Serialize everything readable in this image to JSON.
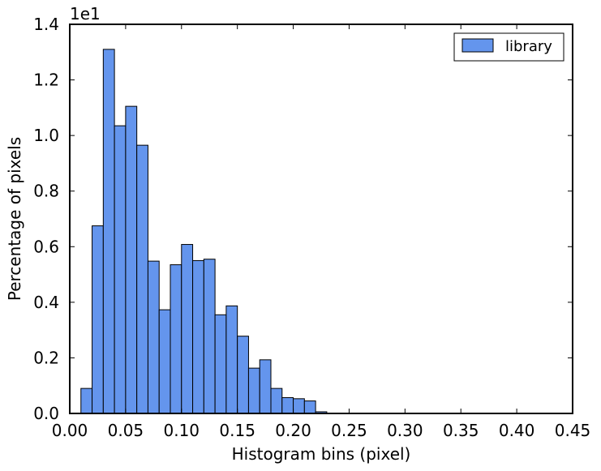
{
  "chart_data": {
    "type": "bar",
    "subtype": "histogram",
    "title": "",
    "xlabel": "Histogram bins (pixel)",
    "ylabel": "Percentage of pixels",
    "y_offset_label": "1e1",
    "xlim": [
      0.0,
      0.45
    ],
    "ylim": [
      0.0,
      1.4
    ],
    "bin_width": 0.01,
    "x_ticks": [
      0.0,
      0.05,
      0.1,
      0.15,
      0.2,
      0.25,
      0.3,
      0.35,
      0.4,
      0.45
    ],
    "x_tick_labels": [
      "0.00",
      "0.05",
      "0.10",
      "0.15",
      "0.20",
      "0.25",
      "0.30",
      "0.35",
      "0.40",
      "0.45"
    ],
    "y_ticks": [
      0.0,
      0.2,
      0.4,
      0.6,
      0.8,
      1.0,
      1.2,
      1.4
    ],
    "y_tick_labels": [
      "0.0",
      "0.2",
      "0.4",
      "0.6",
      "0.8",
      "1.0",
      "1.2",
      "1.4"
    ],
    "grid": false,
    "legend_position": "top-right",
    "series": [
      {
        "name": "library",
        "color": "#6495ED",
        "bin_starts": [
          0.01,
          0.02,
          0.03,
          0.04,
          0.05,
          0.06,
          0.07,
          0.08,
          0.09,
          0.1,
          0.11,
          0.12,
          0.13,
          0.14,
          0.15,
          0.16,
          0.17,
          0.18,
          0.19,
          0.2,
          0.21,
          0.22
        ],
        "values": [
          0.09,
          0.675,
          1.31,
          1.035,
          1.105,
          0.965,
          0.548,
          0.373,
          0.535,
          0.608,
          0.55,
          0.555,
          0.355,
          0.387,
          0.278,
          0.163,
          0.193,
          0.09,
          0.057,
          0.053,
          0.045,
          0.006
        ]
      }
    ]
  }
}
